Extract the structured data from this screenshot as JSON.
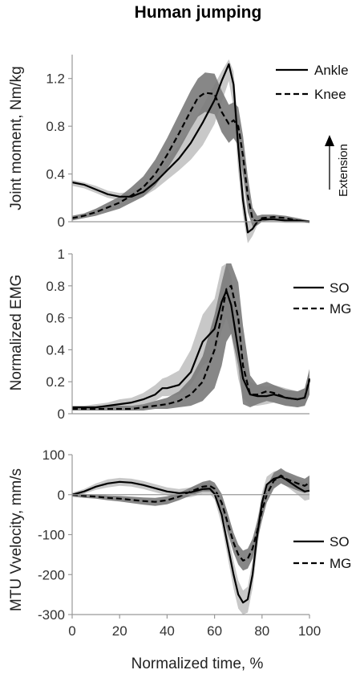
{
  "title": "Human jumping",
  "xlabel": "Normalized time, %",
  "colors": {
    "so_band": "#c8c8c8",
    "mg_band": "#7a7a7a",
    "line": "#000000",
    "axis": "#999999"
  },
  "chart_data": [
    {
      "type": "line",
      "id": "moment",
      "ylabel": "Joint moment, Nm/kg",
      "xlim": [
        0,
        100
      ],
      "ylim": [
        0,
        1.4
      ],
      "yticks": [
        0,
        0.4,
        0.8,
        1.2
      ],
      "ytick_labels": [
        "0",
        "0.4",
        "0.8",
        "1.2"
      ],
      "annotation": "Extension",
      "legend_position": "top-right",
      "series": [
        {
          "name": "Ankle",
          "style": "solid",
          "x": [
            0,
            5,
            10,
            15,
            20,
            25,
            30,
            35,
            40,
            45,
            50,
            55,
            60,
            63,
            66,
            68,
            70,
            72,
            74,
            76,
            78,
            80,
            85,
            90,
            95,
            100
          ],
          "y": [
            0.33,
            0.31,
            0.27,
            0.23,
            0.21,
            0.21,
            0.25,
            0.33,
            0.43,
            0.53,
            0.66,
            0.83,
            1.02,
            1.18,
            1.32,
            1.15,
            0.62,
            0.18,
            -0.09,
            -0.06,
            0.0,
            0.02,
            0.02,
            0.01,
            0.01,
            0.0
          ],
          "band": [
            [
              0.3,
              0.35
            ],
            [
              0.28,
              0.33
            ],
            [
              0.24,
              0.3
            ],
            [
              0.2,
              0.26
            ],
            [
              0.18,
              0.24
            ],
            [
              0.18,
              0.25
            ],
            [
              0.21,
              0.3
            ],
            [
              0.27,
              0.39
            ],
            [
              0.35,
              0.52
            ],
            [
              0.43,
              0.64
            ],
            [
              0.52,
              0.78
            ],
            [
              0.64,
              0.97
            ],
            [
              0.82,
              1.15
            ],
            [
              1.0,
              1.26
            ],
            [
              1.18,
              1.36
            ],
            [
              0.95,
              1.26
            ],
            [
              0.42,
              0.8
            ],
            [
              0.05,
              0.35
            ],
            [
              -0.18,
              0.0
            ],
            [
              -0.12,
              0.0
            ],
            [
              -0.03,
              0.02
            ],
            [
              0.0,
              0.04
            ],
            [
              0.0,
              0.04
            ],
            [
              -0.01,
              0.03
            ],
            [
              -0.01,
              0.02
            ],
            [
              -0.01,
              0.01
            ]
          ]
        },
        {
          "name": "Knee",
          "style": "dashed",
          "x": [
            0,
            5,
            10,
            15,
            20,
            25,
            30,
            35,
            40,
            45,
            50,
            53,
            56,
            60,
            63,
            66,
            68,
            70,
            72,
            74,
            76,
            78,
            80,
            85,
            90,
            95,
            100
          ],
          "y": [
            0.03,
            0.05,
            0.08,
            0.12,
            0.16,
            0.22,
            0.29,
            0.4,
            0.56,
            0.74,
            0.93,
            1.04,
            1.08,
            1.07,
            0.92,
            0.82,
            0.85,
            0.8,
            0.55,
            0.22,
            0.02,
            0.0,
            0.03,
            0.04,
            0.03,
            0.01,
            0.0
          ],
          "band": [
            [
              0.01,
              0.05
            ],
            [
              0.03,
              0.07
            ],
            [
              0.05,
              0.11
            ],
            [
              0.08,
              0.16
            ],
            [
              0.11,
              0.21
            ],
            [
              0.16,
              0.29
            ],
            [
              0.21,
              0.38
            ],
            [
              0.3,
              0.52
            ],
            [
              0.44,
              0.7
            ],
            [
              0.6,
              0.9
            ],
            [
              0.78,
              1.1
            ],
            [
              0.88,
              1.2
            ],
            [
              0.92,
              1.25
            ],
            [
              0.9,
              1.24
            ],
            [
              0.75,
              1.1
            ],
            [
              0.66,
              0.98
            ],
            [
              0.7,
              1.0
            ],
            [
              0.64,
              0.96
            ],
            [
              0.38,
              0.72
            ],
            [
              0.08,
              0.38
            ],
            [
              -0.04,
              0.12
            ],
            [
              -0.03,
              0.05
            ],
            [
              0.0,
              0.06
            ],
            [
              0.02,
              0.06
            ],
            [
              0.01,
              0.05
            ],
            [
              0.0,
              0.03
            ],
            [
              -0.01,
              0.01
            ]
          ]
        }
      ]
    },
    {
      "type": "line",
      "id": "emg",
      "ylabel": "Normalized EMG",
      "xlim": [
        0,
        100
      ],
      "ylim": [
        0,
        1
      ],
      "yticks": [
        0,
        0.2,
        0.4,
        0.6,
        0.8,
        1
      ],
      "ytick_labels": [
        "0",
        "0.2",
        "0.4",
        "0.6",
        "0.8",
        "1"
      ],
      "legend_position": "top-right",
      "series": [
        {
          "name": "SO",
          "style": "solid",
          "x": [
            0,
            5,
            10,
            15,
            20,
            25,
            30,
            35,
            38,
            40,
            45,
            50,
            55,
            60,
            63,
            65,
            67,
            70,
            72,
            75,
            78,
            82,
            85,
            90,
            95,
            98,
            100
          ],
          "y": [
            0.04,
            0.04,
            0.04,
            0.05,
            0.06,
            0.07,
            0.09,
            0.12,
            0.16,
            0.16,
            0.18,
            0.26,
            0.45,
            0.53,
            0.7,
            0.77,
            0.68,
            0.4,
            0.22,
            0.12,
            0.11,
            0.11,
            0.12,
            0.1,
            0.09,
            0.1,
            0.21
          ],
          "band": [
            [
              0.03,
              0.05
            ],
            [
              0.03,
              0.05
            ],
            [
              0.03,
              0.06
            ],
            [
              0.03,
              0.07
            ],
            [
              0.04,
              0.09
            ],
            [
              0.05,
              0.1
            ],
            [
              0.06,
              0.13
            ],
            [
              0.08,
              0.18
            ],
            [
              0.11,
              0.22
            ],
            [
              0.11,
              0.23
            ],
            [
              0.12,
              0.27
            ],
            [
              0.18,
              0.4
            ],
            [
              0.3,
              0.62
            ],
            [
              0.36,
              0.72
            ],
            [
              0.52,
              0.92
            ],
            [
              0.6,
              0.94
            ],
            [
              0.5,
              0.86
            ],
            [
              0.22,
              0.6
            ],
            [
              0.1,
              0.36
            ],
            [
              0.05,
              0.2
            ],
            [
              0.05,
              0.18
            ],
            [
              0.06,
              0.17
            ],
            [
              0.07,
              0.18
            ],
            [
              0.05,
              0.16
            ],
            [
              0.04,
              0.14
            ],
            [
              0.05,
              0.16
            ],
            [
              0.12,
              0.26
            ]
          ]
        },
        {
          "name": "MG",
          "style": "dashed",
          "x": [
            0,
            5,
            10,
            15,
            20,
            25,
            30,
            35,
            40,
            45,
            50,
            55,
            60,
            63,
            65,
            67,
            70,
            72,
            75,
            78,
            82,
            85,
            90,
            95,
            98,
            100
          ],
          "y": [
            0.03,
            0.03,
            0.03,
            0.03,
            0.03,
            0.03,
            0.04,
            0.05,
            0.06,
            0.08,
            0.12,
            0.2,
            0.4,
            0.62,
            0.78,
            0.8,
            0.6,
            0.3,
            0.12,
            0.12,
            0.14,
            0.13,
            0.1,
            0.09,
            0.1,
            0.22
          ],
          "band": [
            [
              0.02,
              0.04
            ],
            [
              0.02,
              0.04
            ],
            [
              0.02,
              0.04
            ],
            [
              0.02,
              0.05
            ],
            [
              0.02,
              0.05
            ],
            [
              0.02,
              0.05
            ],
            [
              0.02,
              0.06
            ],
            [
              0.03,
              0.08
            ],
            [
              0.03,
              0.1
            ],
            [
              0.04,
              0.14
            ],
            [
              0.05,
              0.22
            ],
            [
              0.08,
              0.36
            ],
            [
              0.16,
              0.62
            ],
            [
              0.3,
              0.82
            ],
            [
              0.45,
              0.94
            ],
            [
              0.5,
              0.94
            ],
            [
              0.3,
              0.82
            ],
            [
              0.06,
              0.55
            ],
            [
              0.04,
              0.24
            ],
            [
              0.06,
              0.18
            ],
            [
              0.08,
              0.2
            ],
            [
              0.07,
              0.18
            ],
            [
              0.05,
              0.15
            ],
            [
              0.04,
              0.14
            ],
            [
              0.05,
              0.16
            ],
            [
              0.12,
              0.28
            ]
          ]
        }
      ]
    },
    {
      "type": "line",
      "id": "velocity",
      "ylabel": "MTU Vvelocity, mm/s",
      "xlim": [
        0,
        100
      ],
      "ylim": [
        -300,
        100
      ],
      "yticks": [
        -300,
        -200,
        -100,
        0,
        100
      ],
      "ytick_labels": [
        "-300",
        "-200",
        "-100",
        "0",
        "100"
      ],
      "xticks": [
        0,
        20,
        40,
        60,
        80,
        100
      ],
      "xtick_labels": [
        "0",
        "20",
        "40",
        "60",
        "80",
        "100"
      ],
      "legend_position": "lower-right",
      "series": [
        {
          "name": "SO",
          "style": "solid",
          "x": [
            0,
            5,
            10,
            15,
            20,
            25,
            30,
            35,
            40,
            45,
            50,
            55,
            58,
            60,
            63,
            65,
            68,
            70,
            72,
            74,
            76,
            78,
            80,
            82,
            85,
            88,
            90,
            95,
            98,
            100
          ],
          "y": [
            0,
            8,
            20,
            28,
            32,
            30,
            24,
            16,
            8,
            4,
            6,
            14,
            15,
            2,
            -50,
            -110,
            -200,
            -250,
            -270,
            -262,
            -200,
            -100,
            -20,
            25,
            40,
            45,
            38,
            18,
            8,
            10
          ],
          "band": [
            [
              -5,
              5
            ],
            [
              2,
              14
            ],
            [
              12,
              28
            ],
            [
              18,
              38
            ],
            [
              22,
              42
            ],
            [
              20,
              40
            ],
            [
              14,
              34
            ],
            [
              6,
              26
            ],
            [
              -2,
              18
            ],
            [
              -8,
              14
            ],
            [
              -6,
              18
            ],
            [
              2,
              26
            ],
            [
              2,
              28
            ],
            [
              -12,
              16
            ],
            [
              -75,
              -25
            ],
            [
              -140,
              -80
            ],
            [
              -235,
              -165
            ],
            [
              -285,
              -215
            ],
            [
              -300,
              -240
            ],
            [
              -295,
              -230
            ],
            [
              -235,
              -165
            ],
            [
              -135,
              -65
            ],
            [
              -45,
              5
            ],
            [
              5,
              45
            ],
            [
              22,
              58
            ],
            [
              28,
              62
            ],
            [
              22,
              54
            ],
            [
              0,
              36
            ],
            [
              -15,
              30
            ],
            [
              -12,
              32
            ]
          ]
        },
        {
          "name": "MG",
          "style": "dashed",
          "x": [
            0,
            5,
            10,
            15,
            20,
            25,
            30,
            35,
            40,
            45,
            50,
            55,
            58,
            60,
            63,
            65,
            68,
            70,
            72,
            74,
            76,
            78,
            80,
            82,
            85,
            88,
            90,
            95,
            98,
            100
          ],
          "y": [
            0,
            -3,
            -5,
            -8,
            -10,
            -13,
            -16,
            -18,
            -14,
            -5,
            8,
            20,
            22,
            15,
            -20,
            -60,
            -120,
            -150,
            -165,
            -160,
            -135,
            -90,
            -40,
            0,
            35,
            48,
            40,
            28,
            22,
            30
          ],
          "band": [
            [
              -5,
              3
            ],
            [
              -8,
              2
            ],
            [
              -10,
              0
            ],
            [
              -14,
              -2
            ],
            [
              -17,
              -3
            ],
            [
              -21,
              -5
            ],
            [
              -25,
              -7
            ],
            [
              -28,
              -8
            ],
            [
              -24,
              -4
            ],
            [
              -14,
              4
            ],
            [
              -2,
              18
            ],
            [
              8,
              32
            ],
            [
              8,
              36
            ],
            [
              0,
              30
            ],
            [
              -40,
              2
            ],
            [
              -85,
              -35
            ],
            [
              -145,
              -95
            ],
            [
              -175,
              -125
            ],
            [
              -190,
              -140
            ],
            [
              -185,
              -135
            ],
            [
              -160,
              -110
            ],
            [
              -115,
              -65
            ],
            [
              -65,
              -15
            ],
            [
              -20,
              20
            ],
            [
              15,
              55
            ],
            [
              28,
              66
            ],
            [
              22,
              58
            ],
            [
              10,
              46
            ],
            [
              4,
              40
            ],
            [
              12,
              48
            ]
          ]
        }
      ]
    }
  ]
}
